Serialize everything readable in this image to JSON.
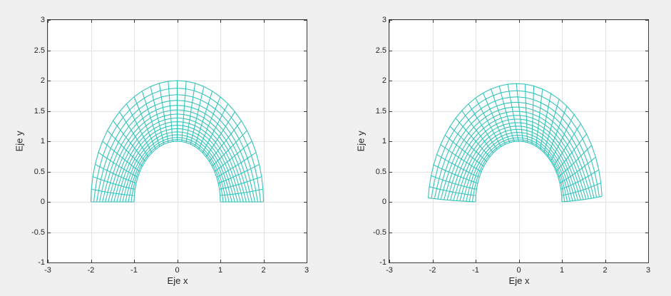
{
  "figure": {
    "background_color": "#f0f0f0",
    "plot_background_color": "#ffffff",
    "grid_color": "#e2e2e2",
    "axes_box_color": "#3c3c3c",
    "text_color": "#262626"
  },
  "chart_data": [
    {
      "type": "mesh",
      "title": "",
      "xlabel": "Eje x",
      "ylabel": "Eje y",
      "xlim": [
        -3,
        3
      ],
      "ylim": [
        -1,
        3
      ],
      "xticks": [
        -3,
        -2,
        -1,
        0,
        1,
        2,
        3
      ],
      "xtick_labels": [
        "-3",
        "-2",
        "-1",
        "0",
        "1",
        "2",
        "3"
      ],
      "yticks": [
        -1,
        -0.5,
        0,
        0.5,
        1,
        1.5,
        2,
        2.5,
        3
      ],
      "ytick_labels": [
        "-1",
        "-0.5",
        "0",
        "0.5",
        "1",
        "1.5",
        "2",
        "2.5",
        "3"
      ],
      "grid": true,
      "legend": null,
      "mesh_line_color": "#35c4bb",
      "mesh": {
        "shape": "half-annulus",
        "r_inner": 1,
        "r_outer": 2,
        "theta_start_deg": 0,
        "theta_end_deg": 180,
        "radial_cells": 15,
        "angular_cells": 30,
        "smoothing_iterations": 40,
        "perturbation": {
          "twist_coeffs": [
            0,
            0,
            0
          ],
          "radial_coeffs": [
            0,
            0,
            0
          ]
        }
      }
    },
    {
      "type": "mesh",
      "title": "",
      "xlabel": "Eje x",
      "ylabel": "Eje y",
      "xlim": [
        -3,
        3
      ],
      "ylim": [
        -1,
        3
      ],
      "xticks": [
        -3,
        -2,
        -1,
        0,
        1,
        2,
        3
      ],
      "xtick_labels": [
        "-3",
        "-2",
        "-1",
        "0",
        "1",
        "2",
        "3"
      ],
      "yticks": [
        -1,
        -0.5,
        0,
        0.5,
        1,
        1.5,
        2,
        2.5,
        3
      ],
      "ytick_labels": [
        "-1",
        "-0.5",
        "0",
        "0.5",
        "1",
        "1.5",
        "2",
        "2.5",
        "3"
      ],
      "grid": true,
      "legend": null,
      "mesh_line_color": "#35c4bb",
      "mesh": {
        "shape": "half-annulus-deformed",
        "r_inner": 1,
        "r_outer": 2,
        "theta_start_deg": 0,
        "theta_end_deg": 180,
        "radial_cells": 15,
        "angular_cells": 30,
        "smoothing_iterations": 40,
        "perturbation": {
          "twist_coeffs": [
            0.047,
            -0.0248,
            0.123
          ],
          "radial_coeffs": [
            -0.07,
            0.0541,
            -0.058
          ]
        }
      }
    }
  ]
}
